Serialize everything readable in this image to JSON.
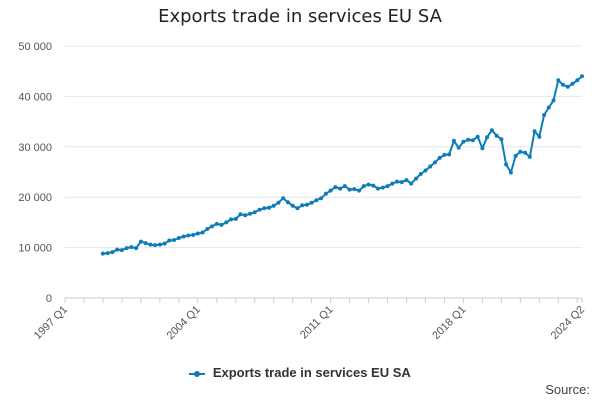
{
  "chart_data": {
    "type": "line",
    "title": "Exports trade in services EU SA",
    "xlabel": "",
    "ylabel": "",
    "ylim": [
      0,
      50000
    ],
    "yticks": [
      0,
      10000,
      20000,
      30000,
      40000,
      50000
    ],
    "ytick_labels": [
      "0",
      "10 000",
      "20 000",
      "30 000",
      "40 000",
      "50 000"
    ],
    "xtick_labels": [
      "1997 Q1",
      "2004 Q1",
      "2011 Q1",
      "2018 Q1",
      "2024 Q2"
    ],
    "grid": true,
    "legend_position": "bottom",
    "color": "#0f7cb8",
    "series": [
      {
        "name": "Exports trade in services EU SA",
        "x": [
          "1999 Q1",
          "1999 Q2",
          "1999 Q3",
          "1999 Q4",
          "2000 Q1",
          "2000 Q2",
          "2000 Q3",
          "2000 Q4",
          "2001 Q1",
          "2001 Q2",
          "2001 Q3",
          "2001 Q4",
          "2002 Q1",
          "2002 Q2",
          "2002 Q3",
          "2002 Q4",
          "2003 Q1",
          "2003 Q2",
          "2003 Q3",
          "2003 Q4",
          "2004 Q1",
          "2004 Q2",
          "2004 Q3",
          "2004 Q4",
          "2005 Q1",
          "2005 Q2",
          "2005 Q3",
          "2005 Q4",
          "2006 Q1",
          "2006 Q2",
          "2006 Q3",
          "2006 Q4",
          "2007 Q1",
          "2007 Q2",
          "2007 Q3",
          "2007 Q4",
          "2008 Q1",
          "2008 Q2",
          "2008 Q3",
          "2008 Q4",
          "2009 Q1",
          "2009 Q2",
          "2009 Q3",
          "2009 Q4",
          "2010 Q1",
          "2010 Q2",
          "2010 Q3",
          "2010 Q4",
          "2011 Q1",
          "2011 Q2",
          "2011 Q3",
          "2011 Q4",
          "2012 Q1",
          "2012 Q2",
          "2012 Q3",
          "2012 Q4",
          "2013 Q1",
          "2013 Q2",
          "2013 Q3",
          "2013 Q4",
          "2014 Q1",
          "2014 Q2",
          "2014 Q3",
          "2014 Q4",
          "2015 Q1",
          "2015 Q2",
          "2015 Q3",
          "2015 Q4",
          "2016 Q1",
          "2016 Q2",
          "2016 Q3",
          "2016 Q4",
          "2017 Q1",
          "2017 Q2",
          "2017 Q3",
          "2017 Q4",
          "2018 Q1",
          "2018 Q2",
          "2018 Q3",
          "2018 Q4",
          "2019 Q1",
          "2019 Q2",
          "2019 Q3",
          "2019 Q4",
          "2020 Q1",
          "2020 Q2",
          "2020 Q3",
          "2020 Q4",
          "2021 Q1",
          "2021 Q2",
          "2021 Q3",
          "2021 Q4",
          "2022 Q1",
          "2022 Q2",
          "2022 Q3",
          "2022 Q4",
          "2023 Q1",
          "2023 Q2",
          "2023 Q3",
          "2023 Q4",
          "2024 Q1",
          "2024 Q2"
        ],
        "values": [
          8800,
          8900,
          9100,
          9600,
          9500,
          9900,
          10100,
          9900,
          11200,
          10900,
          10600,
          10500,
          10600,
          10800,
          11400,
          11500,
          11900,
          12200,
          12400,
          12500,
          12800,
          13000,
          13700,
          14200,
          14700,
          14500,
          15000,
          15600,
          15700,
          16600,
          16400,
          16700,
          17000,
          17500,
          17800,
          17900,
          18300,
          18900,
          19800,
          19000,
          18300,
          17800,
          18400,
          18500,
          18900,
          19400,
          19800,
          20700,
          21300,
          22000,
          21700,
          22200,
          21500,
          21600,
          21300,
          22200,
          22500,
          22300,
          21700,
          21900,
          22200,
          22700,
          23100,
          23000,
          23400,
          22700,
          23700,
          24600,
          25300,
          26100,
          26900,
          27800,
          28400,
          28500,
          31200,
          29800,
          31000,
          31400,
          31300,
          32000,
          29700,
          31900,
          33300,
          32200,
          31500,
          26500,
          24900,
          28200,
          29000,
          28800,
          28000,
          33100,
          32000,
          36300,
          37800,
          39200,
          43200,
          42300,
          41900,
          42500,
          43200,
          44000
        ]
      }
    ]
  },
  "legend": {
    "label": "Exports trade in services EU SA"
  },
  "footer": {
    "source": "Source:"
  }
}
